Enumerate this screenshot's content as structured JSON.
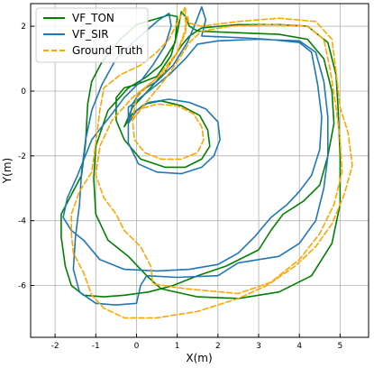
{
  "chart_data": {
    "type": "line",
    "title": "",
    "xlabel": "X(m)",
    "ylabel": "Y(m)",
    "xlim": [
      -2.6,
      5.7
    ],
    "ylim": [
      -7.6,
      2.7
    ],
    "xticks": [
      -2,
      -1,
      0,
      1,
      2,
      3,
      4,
      5
    ],
    "yticks": [
      2,
      0,
      -2,
      -4,
      -6
    ],
    "grid": true,
    "legend_position": "top-left",
    "series": [
      {
        "name": "VF_TON",
        "color": "#008000",
        "dash": "solid",
        "points": [
          [
            -0.3,
            -1.1
          ],
          [
            -0.1,
            -0.7
          ],
          [
            0.2,
            -0.4
          ],
          [
            0.6,
            -0.3
          ],
          [
            1.1,
            -0.45
          ],
          [
            1.55,
            -0.75
          ],
          [
            1.75,
            -1.2
          ],
          [
            1.8,
            -1.7
          ],
          [
            1.6,
            -2.1
          ],
          [
            1.2,
            -2.35
          ],
          [
            0.7,
            -2.35
          ],
          [
            0.1,
            -2.1
          ],
          [
            -0.3,
            -1.5
          ],
          [
            -0.5,
            -0.9
          ],
          [
            -0.5,
            -0.2
          ],
          [
            -0.3,
            0.1
          ],
          [
            0.0,
            0.2
          ],
          [
            0.5,
            0.45
          ],
          [
            0.85,
            1.1
          ],
          [
            1.0,
            1.8
          ],
          [
            1.1,
            2.45
          ],
          [
            1.2,
            2.3
          ],
          [
            1.3,
            2.0
          ],
          [
            1.5,
            1.85
          ],
          [
            2.5,
            1.8
          ],
          [
            3.5,
            1.75
          ],
          [
            4.2,
            1.6
          ],
          [
            4.6,
            1.0
          ],
          [
            4.8,
            0.0
          ],
          [
            4.85,
            -1.0
          ],
          [
            4.7,
            -2.0
          ],
          [
            4.5,
            -2.9
          ],
          [
            4.1,
            -3.4
          ],
          [
            3.6,
            -3.8
          ],
          [
            3.3,
            -4.3
          ],
          [
            3.0,
            -4.9
          ],
          [
            2.2,
            -5.4
          ],
          [
            1.5,
            -5.7
          ],
          [
            0.9,
            -6.0
          ],
          [
            0.3,
            -6.2
          ],
          [
            -0.3,
            -6.3
          ],
          [
            -0.8,
            -6.35
          ],
          [
            -1.3,
            -6.3
          ],
          [
            -1.6,
            -6.0
          ],
          [
            -1.75,
            -5.4
          ],
          [
            -1.85,
            -4.5
          ],
          [
            -1.85,
            -3.8
          ],
          [
            -1.6,
            -3.2
          ],
          [
            -1.35,
            -2.6
          ],
          [
            -1.25,
            -1.6
          ],
          [
            -1.2,
            -0.4
          ],
          [
            -1.1,
            0.3
          ],
          [
            -0.85,
            0.9
          ],
          [
            -0.4,
            1.6
          ],
          [
            0.0,
            2.05
          ],
          [
            0.4,
            2.2
          ],
          [
            0.8,
            2.35
          ],
          [
            1.0,
            2.3
          ],
          [
            0.95,
            1.5
          ],
          [
            0.6,
            0.8
          ],
          [
            0.2,
            0.4
          ],
          [
            -0.2,
            0.1
          ],
          [
            -0.7,
            -0.6
          ],
          [
            -1.0,
            -1.7
          ],
          [
            -1.05,
            -2.7
          ],
          [
            -1.0,
            -3.8
          ],
          [
            -0.7,
            -4.6
          ],
          [
            -0.2,
            -5.1
          ],
          [
            0.25,
            -5.7
          ],
          [
            0.6,
            -6.1
          ],
          [
            1.5,
            -6.35
          ],
          [
            2.5,
            -6.4
          ],
          [
            3.5,
            -6.2
          ],
          [
            4.3,
            -5.7
          ],
          [
            4.8,
            -4.7
          ],
          [
            5.0,
            -3.5
          ],
          [
            5.0,
            -2.0
          ],
          [
            4.95,
            -0.5
          ],
          [
            4.9,
            0.5
          ],
          [
            4.7,
            1.5
          ],
          [
            4.2,
            2.0
          ],
          [
            3.5,
            2.05
          ],
          [
            2.5,
            2.05
          ],
          [
            1.6,
            1.95
          ],
          [
            1.3,
            1.7
          ],
          [
            1.1,
            1.4
          ],
          [
            0.7,
            0.6
          ],
          [
            0.2,
            -0.1
          ],
          [
            -0.1,
            -0.5
          ],
          [
            -0.3,
            -1.1
          ]
        ]
      },
      {
        "name": "VF_SIR",
        "color": "#1f77b4",
        "dash": "solid",
        "points": [
          [
            -0.2,
            -1.0
          ],
          [
            0.0,
            -0.6
          ],
          [
            0.3,
            -0.35
          ],
          [
            0.8,
            -0.25
          ],
          [
            1.3,
            -0.35
          ],
          [
            1.7,
            -0.55
          ],
          [
            2.0,
            -0.95
          ],
          [
            2.05,
            -1.5
          ],
          [
            1.9,
            -2.0
          ],
          [
            1.6,
            -2.35
          ],
          [
            1.1,
            -2.55
          ],
          [
            0.5,
            -2.5
          ],
          [
            0.05,
            -2.25
          ],
          [
            -0.2,
            -1.6
          ],
          [
            -0.2,
            -1.0
          ],
          [
            -0.1,
            -0.4
          ],
          [
            0.1,
            0.0
          ],
          [
            0.5,
            0.3
          ],
          [
            0.9,
            0.8
          ],
          [
            1.25,
            1.5
          ],
          [
            1.45,
            2.1
          ],
          [
            1.6,
            2.6
          ],
          [
            1.7,
            2.2
          ],
          [
            1.6,
            1.7
          ],
          [
            2.5,
            1.65
          ],
          [
            3.2,
            1.6
          ],
          [
            4.0,
            1.5
          ],
          [
            4.3,
            1.2
          ],
          [
            4.45,
            0.2
          ],
          [
            4.55,
            -0.8
          ],
          [
            4.5,
            -1.8
          ],
          [
            4.3,
            -2.6
          ],
          [
            4.0,
            -3.1
          ],
          [
            3.7,
            -3.5
          ],
          [
            3.3,
            -3.9
          ],
          [
            2.9,
            -4.5
          ],
          [
            2.5,
            -5.0
          ],
          [
            2.0,
            -5.35
          ],
          [
            1.3,
            -5.5
          ],
          [
            0.5,
            -5.55
          ],
          [
            -0.3,
            -5.5
          ],
          [
            -0.9,
            -5.2
          ],
          [
            -1.3,
            -4.6
          ],
          [
            -1.6,
            -4.3
          ],
          [
            -1.8,
            -3.9
          ],
          [
            -1.7,
            -3.3
          ],
          [
            -1.45,
            -2.6
          ],
          [
            -1.1,
            -1.5
          ],
          [
            -0.6,
            -0.7
          ],
          [
            -0.3,
            -0.2
          ],
          [
            0.1,
            0.3
          ],
          [
            0.4,
            0.8
          ],
          [
            0.7,
            1.4
          ],
          [
            0.85,
            2.0
          ],
          [
            0.8,
            2.4
          ],
          [
            0.55,
            2.2
          ],
          [
            0.0,
            1.6
          ],
          [
            -0.5,
            1.0
          ],
          [
            -0.85,
            0.2
          ],
          [
            -1.1,
            -0.6
          ],
          [
            -1.25,
            -1.5
          ],
          [
            -1.35,
            -2.5
          ],
          [
            -1.4,
            -3.5
          ],
          [
            -1.5,
            -4.5
          ],
          [
            -1.55,
            -5.5
          ],
          [
            -1.4,
            -6.2
          ],
          [
            -1.0,
            -6.55
          ],
          [
            -0.5,
            -6.6
          ],
          [
            0.0,
            -6.55
          ],
          [
            0.1,
            -6.0
          ],
          [
            0.25,
            -5.7
          ],
          [
            1.0,
            -5.75
          ],
          [
            2.0,
            -5.7
          ],
          [
            2.5,
            -5.3
          ],
          [
            3.5,
            -5.1
          ],
          [
            4.0,
            -4.7
          ],
          [
            4.4,
            -4.0
          ],
          [
            4.6,
            -3.0
          ],
          [
            4.7,
            -2.0
          ],
          [
            4.7,
            -0.8
          ],
          [
            4.6,
            0.3
          ],
          [
            4.4,
            1.2
          ],
          [
            4.0,
            1.55
          ],
          [
            3.0,
            1.6
          ],
          [
            2.0,
            1.55
          ],
          [
            1.5,
            1.45
          ],
          [
            1.2,
            1.0
          ],
          [
            0.8,
            0.5
          ],
          [
            0.3,
            0.0
          ],
          [
            -0.2,
            -0.5
          ],
          [
            -0.2,
            -1.0
          ]
        ]
      },
      {
        "name": "Ground Truth",
        "color": "#ffa500",
        "dash": "dashed",
        "points": [
          [
            -0.1,
            -0.9
          ],
          [
            0.1,
            -0.55
          ],
          [
            0.5,
            -0.4
          ],
          [
            1.0,
            -0.45
          ],
          [
            1.4,
            -0.7
          ],
          [
            1.6,
            -1.1
          ],
          [
            1.65,
            -1.5
          ],
          [
            1.5,
            -1.9
          ],
          [
            1.1,
            -2.1
          ],
          [
            0.6,
            -2.1
          ],
          [
            0.2,
            -1.9
          ],
          [
            -0.05,
            -1.5
          ],
          [
            -0.1,
            -0.9
          ],
          [
            0.0,
            -0.2
          ],
          [
            0.3,
            0.2
          ],
          [
            0.7,
            0.6
          ],
          [
            1.0,
            1.2
          ],
          [
            1.2,
            1.8
          ],
          [
            1.25,
            2.3
          ],
          [
            1.3,
            2.1
          ],
          [
            1.6,
            2.0
          ],
          [
            2.5,
            2.15
          ],
          [
            3.5,
            2.25
          ],
          [
            4.4,
            2.15
          ],
          [
            4.8,
            1.6
          ],
          [
            4.9,
            0.6
          ],
          [
            5.0,
            -0.5
          ],
          [
            5.2,
            -1.3
          ],
          [
            5.3,
            -2.3
          ],
          [
            5.1,
            -3.2
          ],
          [
            4.8,
            -4.1
          ],
          [
            4.4,
            -4.8
          ],
          [
            3.9,
            -5.4
          ],
          [
            3.2,
            -6.0
          ],
          [
            2.5,
            -6.4
          ],
          [
            1.5,
            -6.8
          ],
          [
            0.5,
            -7.0
          ],
          [
            -0.3,
            -7.0
          ],
          [
            -0.8,
            -6.7
          ],
          [
            -1.1,
            -6.3
          ],
          [
            -1.3,
            -5.6
          ],
          [
            -1.55,
            -5.0
          ],
          [
            -1.6,
            -4.4
          ],
          [
            -1.6,
            -3.8
          ],
          [
            -1.4,
            -3.1
          ],
          [
            -1.1,
            -2.5
          ],
          [
            -1.0,
            -1.6
          ],
          [
            -0.9,
            -0.6
          ],
          [
            -0.8,
            0.1
          ],
          [
            -0.4,
            0.5
          ],
          [
            0.1,
            0.8
          ],
          [
            0.5,
            1.2
          ],
          [
            0.8,
            1.6
          ],
          [
            1.0,
            2.1
          ],
          [
            1.2,
            2.6
          ],
          [
            1.2,
            1.9
          ],
          [
            1.0,
            1.2
          ],
          [
            0.5,
            0.4
          ],
          [
            -0.1,
            -0.2
          ],
          [
            -0.6,
            -0.9
          ],
          [
            -0.9,
            -1.7
          ],
          [
            -1.0,
            -2.6
          ],
          [
            -0.8,
            -3.3
          ],
          [
            -0.5,
            -3.8
          ],
          [
            -0.3,
            -4.3
          ],
          [
            0.1,
            -4.8
          ],
          [
            0.35,
            -5.4
          ],
          [
            0.4,
            -5.95
          ],
          [
            1.2,
            -6.1
          ],
          [
            2.5,
            -6.25
          ],
          [
            3.3,
            -5.9
          ],
          [
            4.0,
            -5.2
          ],
          [
            4.5,
            -4.4
          ],
          [
            4.85,
            -3.5
          ],
          [
            5.05,
            -2.5
          ],
          [
            5.0,
            -1.5
          ],
          [
            4.9,
            -0.5
          ],
          [
            4.75,
            0.7
          ],
          [
            4.6,
            1.6
          ],
          [
            4.2,
            2.0
          ],
          [
            3.3,
            2.05
          ],
          [
            2.3,
            2.0
          ],
          [
            1.6,
            1.85
          ],
          [
            1.3,
            1.5
          ],
          [
            1.0,
            0.9
          ],
          [
            0.6,
            0.2
          ],
          [
            0.2,
            -0.4
          ],
          [
            -0.1,
            -0.9
          ]
        ]
      }
    ]
  }
}
